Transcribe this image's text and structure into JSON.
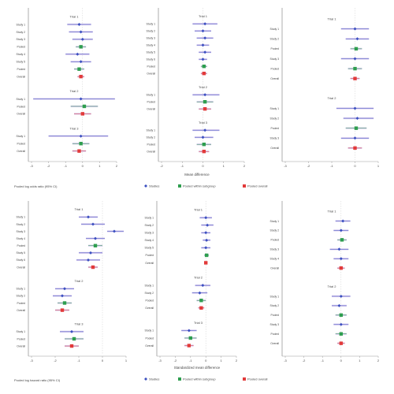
{
  "figure": {
    "legend": [
      {
        "label": "Studies",
        "color": "#3b4fc0",
        "shape": "diamond"
      },
      {
        "label": "Pooled within subgroup",
        "color": "#2e9e4f",
        "shape": "square"
      },
      {
        "label": "Pooled overall",
        "color": "#e23a3a",
        "shape": "square"
      }
    ],
    "colors": {
      "study": "#3b4fc0",
      "subgroup": "#2e9e4f",
      "overall": "#e23a3a",
      "ci": "#c9b8e8",
      "frame": "#9a9a9a"
    }
  },
  "chart_data": [
    {
      "type": "scatter",
      "id": "top-left",
      "xlim": [
        -3,
        2
      ],
      "xticks": [
        -3,
        -2,
        -1,
        0,
        1,
        2
      ],
      "footnote": "Pooled log odds ratio (95% CI)",
      "groups": [
        {
          "title": "Trial 1",
          "rows": [
            {
              "label": "Study 1",
              "est": -0.2,
              "lo": -0.9,
              "hi": 0.5,
              "kind": "study"
            },
            {
              "label": "Study 2",
              "est": -0.1,
              "lo": -0.8,
              "hi": 0.6,
              "kind": "study"
            },
            {
              "label": "Study 3",
              "est": 0.0,
              "lo": -0.6,
              "hi": 0.6,
              "kind": "study"
            },
            {
              "label": "Pooled",
              "est": -0.1,
              "lo": -0.4,
              "hi": 0.2,
              "kind": "subgroup"
            },
            {
              "label": "Study 4",
              "est": -0.3,
              "lo": -1.0,
              "hi": 0.4,
              "kind": "study"
            },
            {
              "label": "Study 5",
              "est": -0.1,
              "lo": -0.7,
              "hi": 0.5,
              "kind": "study"
            },
            {
              "label": "Pooled",
              "est": -0.2,
              "lo": -0.5,
              "hi": 0.1,
              "kind": "subgroup"
            },
            {
              "label": "Overall",
              "est": -0.1,
              "lo": -0.3,
              "hi": 0.1,
              "kind": "overall"
            }
          ]
        },
        {
          "title": "Trial 2",
          "rows": [
            {
              "label": "Study 1",
              "est": -0.1,
              "lo": -2.9,
              "hi": 1.9,
              "kind": "study"
            },
            {
              "label": "Pooled",
              "est": 0.1,
              "lo": -0.7,
              "hi": 0.9,
              "kind": "subgroup"
            },
            {
              "label": "Overall",
              "est": 0.0,
              "lo": -0.5,
              "hi": 0.5,
              "kind": "overall"
            }
          ]
        },
        {
          "title": "Trial 3",
          "rows": [
            {
              "label": "Study 1",
              "est": -0.1,
              "lo": -2.0,
              "hi": 1.5,
              "kind": "study"
            },
            {
              "label": "Pooled",
              "est": -0.1,
              "lo": -0.6,
              "hi": 0.4,
              "kind": "subgroup"
            },
            {
              "label": "Overall",
              "est": -0.2,
              "lo": -0.6,
              "hi": 0.2,
              "kind": "overall"
            }
          ]
        }
      ]
    },
    {
      "type": "scatter",
      "id": "top-middle",
      "xlim": [
        -2,
        2
      ],
      "xticks": [
        -2,
        -1,
        0,
        1,
        2
      ],
      "xlabel": "Mean difference",
      "groups": [
        {
          "title": "Trial 1",
          "rows": [
            {
              "label": "Study 1",
              "est": 0.1,
              "lo": -0.5,
              "hi": 0.7,
              "kind": "study"
            },
            {
              "label": "Study 2",
              "est": 0.0,
              "lo": -0.4,
              "hi": 0.4,
              "kind": "study"
            },
            {
              "label": "Study 3",
              "est": 0.1,
              "lo": -0.3,
              "hi": 0.5,
              "kind": "study"
            },
            {
              "label": "Study 4",
              "est": 0.0,
              "lo": -0.3,
              "hi": 0.3,
              "kind": "study"
            },
            {
              "label": "Study 5",
              "est": 0.1,
              "lo": -0.2,
              "hi": 0.4,
              "kind": "study"
            },
            {
              "label": "Study 6",
              "est": 0.0,
              "lo": -0.2,
              "hi": 0.2,
              "kind": "study"
            },
            {
              "label": "Pooled",
              "est": 0.05,
              "lo": -0.1,
              "hi": 0.2,
              "kind": "subgroup"
            },
            {
              "label": "Overall",
              "est": 0.05,
              "lo": -0.1,
              "hi": 0.2,
              "kind": "overall"
            }
          ]
        },
        {
          "title": "Trial 2",
          "rows": [
            {
              "label": "Study 1",
              "est": 0.1,
              "lo": -0.5,
              "hi": 0.8,
              "kind": "study"
            },
            {
              "label": "Pooled",
              "est": 0.1,
              "lo": -0.3,
              "hi": 0.5,
              "kind": "subgroup"
            },
            {
              "label": "Overall",
              "est": 0.1,
              "lo": -0.2,
              "hi": 0.4,
              "kind": "overall"
            }
          ]
        },
        {
          "title": "Trial 3",
          "rows": [
            {
              "label": "Study 1",
              "est": 0.1,
              "lo": -0.5,
              "hi": 0.8,
              "kind": "study"
            },
            {
              "label": "Study 2",
              "est": 0.0,
              "lo": -0.4,
              "hi": 0.5,
              "kind": "study"
            },
            {
              "label": "Pooled",
              "est": 0.05,
              "lo": -0.3,
              "hi": 0.4,
              "kind": "subgroup"
            },
            {
              "label": "Overall",
              "est": 0.05,
              "lo": -0.2,
              "hi": 0.3,
              "kind": "overall"
            }
          ]
        }
      ]
    },
    {
      "type": "scatter",
      "id": "top-right",
      "xlim": [
        -3,
        1
      ],
      "xticks": [
        -3,
        -2,
        -1,
        0,
        1
      ],
      "groups": [
        {
          "title": "Trial 1",
          "rows": [
            {
              "label": "Study 1",
              "est": 0.0,
              "lo": -0.6,
              "hi": 0.6,
              "kind": "study"
            },
            {
              "label": "Study 2",
              "est": 0.1,
              "lo": -0.4,
              "hi": 0.6,
              "kind": "study"
            },
            {
              "label": "Pooled",
              "est": 0.05,
              "lo": -0.2,
              "hi": 0.3,
              "kind": "subgroup"
            },
            {
              "label": "Study 3",
              "est": 0.0,
              "lo": -0.6,
              "hi": 0.6,
              "kind": "study"
            },
            {
              "label": "Pooled",
              "est": 0.0,
              "lo": -0.3,
              "hi": 0.3,
              "kind": "subgroup"
            },
            {
              "label": "Overall",
              "est": 0.0,
              "lo": -0.2,
              "hi": 0.2,
              "kind": "overall"
            }
          ]
        },
        {
          "title": "Trial 2",
          "rows": [
            {
              "label": "Study 1",
              "est": 0.0,
              "lo": -0.8,
              "hi": 0.8,
              "kind": "study"
            },
            {
              "label": "Study 2",
              "est": 0.1,
              "lo": -0.5,
              "hi": 0.8,
              "kind": "study"
            },
            {
              "label": "Pooled",
              "est": 0.05,
              "lo": -0.4,
              "hi": 0.5,
              "kind": "subgroup"
            },
            {
              "label": "Study 3",
              "est": 0.0,
              "lo": -0.6,
              "hi": 0.6,
              "kind": "study"
            },
            {
              "label": "Overall",
              "est": 0.0,
              "lo": -0.3,
              "hi": 0.3,
              "kind": "overall"
            }
          ]
        }
      ]
    },
    {
      "type": "scatter",
      "id": "bottom-left",
      "xlim": [
        -3,
        1
      ],
      "xticks": [
        -3,
        -2,
        -1,
        0,
        1
      ],
      "footnote": "Pooled log hazard ratio (95% CI)",
      "groups": [
        {
          "title": "Trial 1",
          "rows": [
            {
              "label": "Study 1",
              "est": -0.6,
              "lo": -1.0,
              "hi": -0.2,
              "kind": "study"
            },
            {
              "label": "Study 2",
              "est": -0.4,
              "lo": -0.9,
              "hi": 0.1,
              "kind": "study"
            },
            {
              "label": "Study 3",
              "est": 0.5,
              "lo": 0.2,
              "hi": 0.9,
              "kind": "study"
            },
            {
              "label": "Study 4",
              "est": -0.3,
              "lo": -0.7,
              "hi": 0.1,
              "kind": "study"
            },
            {
              "label": "Pooled",
              "est": -0.3,
              "lo": -0.6,
              "hi": 0.0,
              "kind": "subgroup"
            },
            {
              "label": "Study 5",
              "est": -0.5,
              "lo": -1.0,
              "hi": 0.0,
              "kind": "study"
            },
            {
              "label": "Study 6",
              "est": -0.6,
              "lo": -1.1,
              "hi": -0.1,
              "kind": "study"
            },
            {
              "label": "Overall",
              "est": -0.4,
              "lo": -0.6,
              "hi": -0.2,
              "kind": "overall"
            }
          ]
        },
        {
          "title": "Trial 2",
          "rows": [
            {
              "label": "Study 1",
              "est": -1.6,
              "lo": -2.0,
              "hi": -1.2,
              "kind": "study"
            },
            {
              "label": "Study 2",
              "est": -1.7,
              "lo": -2.1,
              "hi": -1.3,
              "kind": "study"
            },
            {
              "label": "Pooled",
              "est": -1.6,
              "lo": -1.9,
              "hi": -1.3,
              "kind": "subgroup"
            },
            {
              "label": "Overall",
              "est": -1.7,
              "lo": -2.0,
              "hi": -1.4,
              "kind": "overall"
            }
          ]
        },
        {
          "title": "Trial 3",
          "rows": [
            {
              "label": "Study 1",
              "est": -1.3,
              "lo": -1.8,
              "hi": -0.8,
              "kind": "study"
            },
            {
              "label": "Pooled",
              "est": -1.2,
              "lo": -1.6,
              "hi": -0.8,
              "kind": "subgroup"
            },
            {
              "label": "Overall",
              "est": -1.3,
              "lo": -1.6,
              "hi": -1.0,
              "kind": "overall"
            }
          ]
        }
      ]
    },
    {
      "type": "scatter",
      "id": "bottom-middle",
      "xlim": [
        -3,
        2
      ],
      "xticks": [
        -3,
        -2,
        -1,
        0,
        1,
        2
      ],
      "xlabel": "Standardized mean difference",
      "groups": [
        {
          "title": "Trial 1",
          "rows": [
            {
              "label": "Study 1",
              "est": 0.0,
              "lo": -0.4,
              "hi": 0.4,
              "kind": "study"
            },
            {
              "label": "Study 2",
              "est": 0.1,
              "lo": -0.3,
              "hi": 0.5,
              "kind": "study"
            },
            {
              "label": "Study 3",
              "est": 0.0,
              "lo": -0.3,
              "hi": 0.3,
              "kind": "study"
            },
            {
              "label": "Study 4",
              "est": 0.05,
              "lo": -0.2,
              "hi": 0.3,
              "kind": "study"
            },
            {
              "label": "Study 5",
              "est": 0.0,
              "lo": -0.3,
              "hi": 0.3,
              "kind": "study"
            },
            {
              "label": "Pooled",
              "est": 0.05,
              "lo": -0.1,
              "hi": 0.2,
              "kind": "subgroup"
            },
            {
              "label": "Overall",
              "est": 0.0,
              "lo": -0.1,
              "hi": 0.1,
              "kind": "overall"
            }
          ]
        },
        {
          "title": "Trial 2",
          "rows": [
            {
              "label": "Study 1",
              "est": -0.2,
              "lo": -0.7,
              "hi": 0.3,
              "kind": "study"
            },
            {
              "label": "Study 2",
              "est": -0.4,
              "lo": -0.9,
              "hi": 0.1,
              "kind": "study"
            },
            {
              "label": "Pooled",
              "est": -0.3,
              "lo": -0.6,
              "hi": 0.0,
              "kind": "subgroup"
            },
            {
              "label": "Overall",
              "est": -0.3,
              "lo": -0.5,
              "hi": -0.1,
              "kind": "overall"
            }
          ]
        },
        {
          "title": "Trial 3",
          "rows": [
            {
              "label": "Study 1",
              "est": -1.1,
              "lo": -1.6,
              "hi": -0.6,
              "kind": "study"
            },
            {
              "label": "Pooled",
              "est": -1.0,
              "lo": -1.4,
              "hi": -0.6,
              "kind": "subgroup"
            },
            {
              "label": "Overall",
              "est": -1.1,
              "lo": -1.4,
              "hi": -0.8,
              "kind": "overall"
            }
          ]
        }
      ]
    },
    {
      "type": "scatter",
      "id": "bottom-right",
      "xlim": [
        -3,
        2
      ],
      "xticks": [
        -3,
        -2,
        -1,
        0,
        1,
        2
      ],
      "groups": [
        {
          "title": "Trial 1",
          "rows": [
            {
              "label": "Study 1",
              "est": 0.1,
              "lo": -0.3,
              "hi": 0.5,
              "kind": "study"
            },
            {
              "label": "Study 2",
              "est": 0.0,
              "lo": -0.4,
              "hi": 0.4,
              "kind": "study"
            },
            {
              "label": "Pooled",
              "est": 0.05,
              "lo": -0.2,
              "hi": 0.3,
              "kind": "subgroup"
            },
            {
              "label": "Study 3",
              "est": -0.1,
              "lo": -0.6,
              "hi": 0.4,
              "kind": "study"
            },
            {
              "label": "Study 4",
              "est": 0.0,
              "lo": -0.4,
              "hi": 0.4,
              "kind": "study"
            },
            {
              "label": "Overall",
              "est": 0.0,
              "lo": -0.2,
              "hi": 0.2,
              "kind": "overall"
            }
          ]
        },
        {
          "title": "Trial 2",
          "rows": [
            {
              "label": "Study 1",
              "est": 0.0,
              "lo": -0.5,
              "hi": 0.5,
              "kind": "study"
            },
            {
              "label": "Study 2",
              "est": -0.1,
              "lo": -0.5,
              "hi": 0.3,
              "kind": "study"
            },
            {
              "label": "Pooled",
              "est": 0.0,
              "lo": -0.3,
              "hi": 0.3,
              "kind": "subgroup"
            },
            {
              "label": "Study 3",
              "est": 0.0,
              "lo": -0.4,
              "hi": 0.4,
              "kind": "study"
            },
            {
              "label": "Pooled",
              "est": 0.0,
              "lo": -0.3,
              "hi": 0.3,
              "kind": "subgroup"
            },
            {
              "label": "Overall",
              "est": 0.0,
              "lo": -0.2,
              "hi": 0.2,
              "kind": "overall"
            }
          ]
        }
      ]
    }
  ]
}
